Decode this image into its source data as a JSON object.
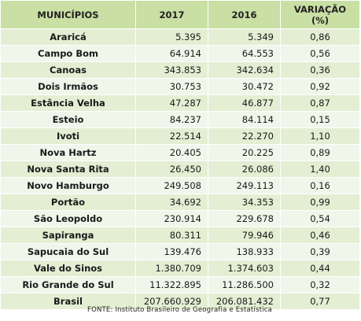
{
  "table": {
    "headers": {
      "municipios": "MUNICÍPIOS",
      "y2017": "2017",
      "y2016": "2016",
      "variacao_line1": "VARIAÇÃO",
      "variacao_line2": "(%)"
    },
    "rows": [
      {
        "municipio": "Araricá",
        "v2017": "5.395",
        "v2016": "5.349",
        "variacao": "0,86"
      },
      {
        "municipio": "Campo Bom",
        "v2017": "64.914",
        "v2016": "64.553",
        "variacao": "0,56"
      },
      {
        "municipio": "Canoas",
        "v2017": "343.853",
        "v2016": "342.634",
        "variacao": "0,36"
      },
      {
        "municipio": "Dois Irmãos",
        "v2017": "30.753",
        "v2016": "30.472",
        "variacao": "0,92"
      },
      {
        "municipio": "Estância Velha",
        "v2017": "47.287",
        "v2016": "46.877",
        "variacao": "0,87"
      },
      {
        "municipio": "Esteio",
        "v2017": "84.237",
        "v2016": "84.114",
        "variacao": "0,15"
      },
      {
        "municipio": "Ivoti",
        "v2017": "22.514",
        "v2016": "22.270",
        "variacao": "1,10"
      },
      {
        "municipio": "Nova Hartz",
        "v2017": "20.405",
        "v2016": "20.225",
        "variacao": "0,89"
      },
      {
        "municipio": "Nova Santa Rita",
        "v2017": "26.450",
        "v2016": "26.086",
        "variacao": "1,40"
      },
      {
        "municipio": "Novo Hamburgo",
        "v2017": "249.508",
        "v2016": "249.113",
        "variacao": "0,16"
      },
      {
        "municipio": "Portão",
        "v2017": "34.692",
        "v2016": "34.353",
        "variacao": "0,99"
      },
      {
        "municipio": "São Leopoldo",
        "v2017": "230.914",
        "v2016": "229.678",
        "variacao": "0,54"
      },
      {
        "municipio": "Sapiranga",
        "v2017": "80.311",
        "v2016": "79.946",
        "variacao": "0,46"
      },
      {
        "municipio": "Sapucaia do Sul",
        "v2017": "139.476",
        "v2016": "138.933",
        "variacao": "0,39"
      },
      {
        "municipio": "Vale do Sinos",
        "v2017": "1.380.709",
        "v2016": "1.374.603",
        "variacao": "0,44"
      },
      {
        "municipio": "Rio Grande do Sul",
        "v2017": "11.322.895",
        "v2016": "11.286.500",
        "variacao": "0,32"
      },
      {
        "municipio": "Brasil",
        "v2017": "207.660.929",
        "v2016": "206.081.432",
        "variacao": "0,77"
      }
    ]
  },
  "source": "FONTE: Instituto Brasileiro de Geografia e Estatística",
  "colors": {
    "header_bg": "#c9dfa3",
    "row_dark": "#e3eed3",
    "row_light": "#f1f6ea"
  }
}
